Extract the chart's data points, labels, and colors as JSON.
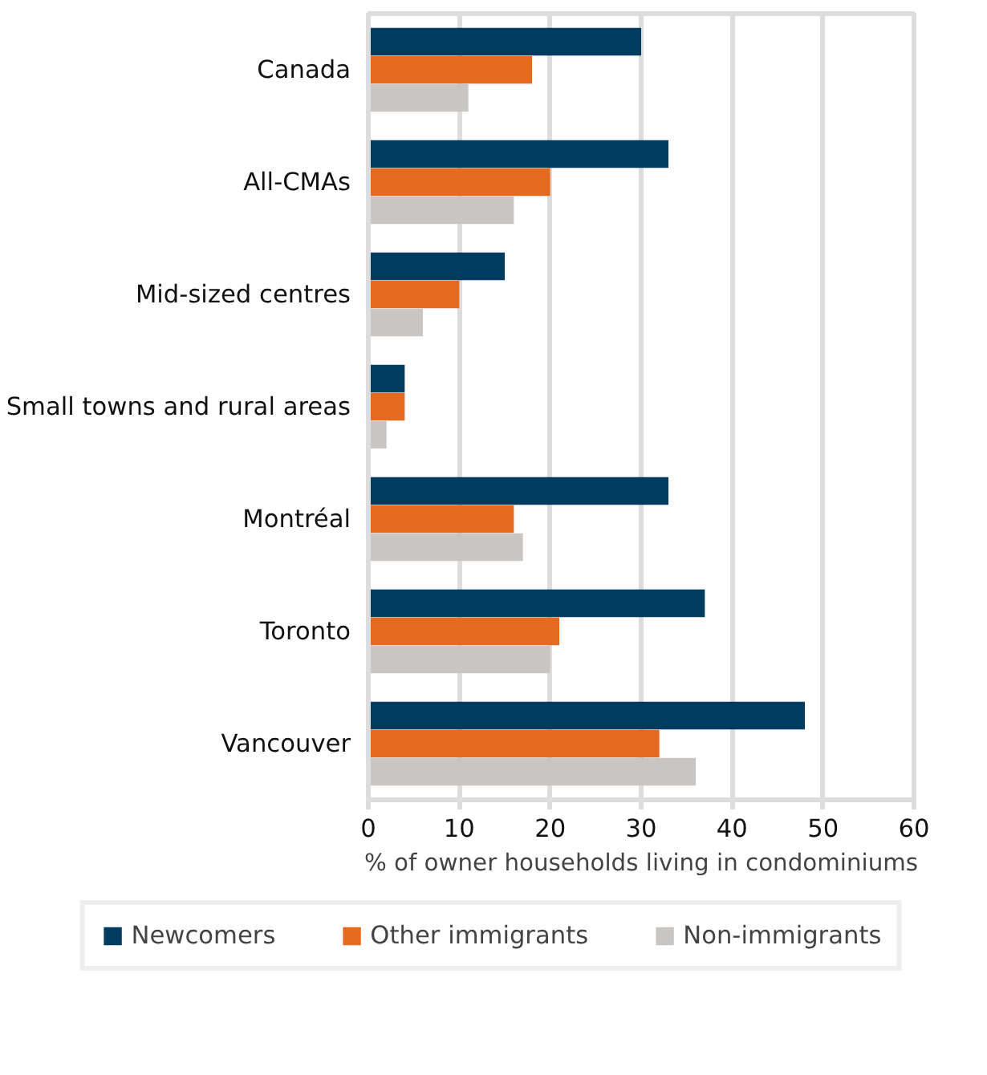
{
  "chart_data": {
    "type": "bar",
    "orientation": "horizontal",
    "xlabel": "% of owner households living in condominiums",
    "categories": [
      "Canada",
      "All-CMAs",
      "Mid-sized centres",
      "Small towns and rural areas",
      "Montréal",
      "Toronto",
      "Vancouver"
    ],
    "series": [
      {
        "name": "Newcomers",
        "color": "#003c5f",
        "values": [
          30,
          33,
          15,
          4,
          33,
          37,
          48
        ]
      },
      {
        "name": "Other immigrants",
        "color": "#e36a1f",
        "values": [
          18,
          20,
          10,
          4,
          16,
          21,
          32
        ]
      },
      {
        "name": "Non-immigrants",
        "color": "#c9c5c2",
        "values": [
          11,
          16,
          6,
          2,
          17,
          20,
          36
        ]
      }
    ],
    "xlim": [
      0,
      60
    ],
    "xticks": [
      0,
      10,
      20,
      30,
      40,
      50,
      60
    ],
    "grid": "x",
    "legend": "bottom"
  }
}
